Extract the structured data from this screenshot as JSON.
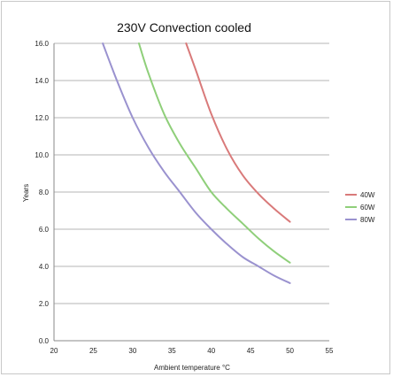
{
  "chart_data": {
    "type": "line",
    "title": "230V Convection cooled",
    "xlabel": "Ambient temperature °C",
    "ylabel": "Years",
    "xlim": [
      20,
      55
    ],
    "ylim": [
      0,
      16
    ],
    "x_ticks": [
      "20",
      "25",
      "30",
      "35",
      "40",
      "45",
      "50",
      "55"
    ],
    "y_ticks": [
      "0.0",
      "2.0",
      "4.0",
      "6.0",
      "8.0",
      "10.0",
      "12.0",
      "14.0",
      "16.0"
    ],
    "grid": "horizontal",
    "legend_position": "right",
    "series": [
      {
        "name": "40W",
        "color": "#d97a7a",
        "x": [
          36.8,
          38,
          40,
          42,
          44,
          46,
          48,
          50
        ],
        "y": [
          16.0,
          14.6,
          12.2,
          10.3,
          8.9,
          7.9,
          7.1,
          6.4
        ]
      },
      {
        "name": "60W",
        "color": "#8fcf7a",
        "x": [
          30.8,
          32,
          34,
          36,
          38,
          40,
          42,
          44,
          46,
          48,
          50
        ],
        "y": [
          16.0,
          14.4,
          12.2,
          10.6,
          9.3,
          8.0,
          7.1,
          6.3,
          5.5,
          4.8,
          4.2
        ]
      },
      {
        "name": "80W",
        "color": "#9a92cf",
        "x": [
          26.2,
          28,
          30,
          32,
          34,
          36,
          38,
          40,
          42,
          44,
          46,
          48,
          50
        ],
        "y": [
          16.0,
          14.0,
          12.0,
          10.4,
          9.1,
          8.0,
          6.9,
          6.0,
          5.2,
          4.5,
          4.0,
          3.5,
          3.1
        ]
      }
    ]
  }
}
